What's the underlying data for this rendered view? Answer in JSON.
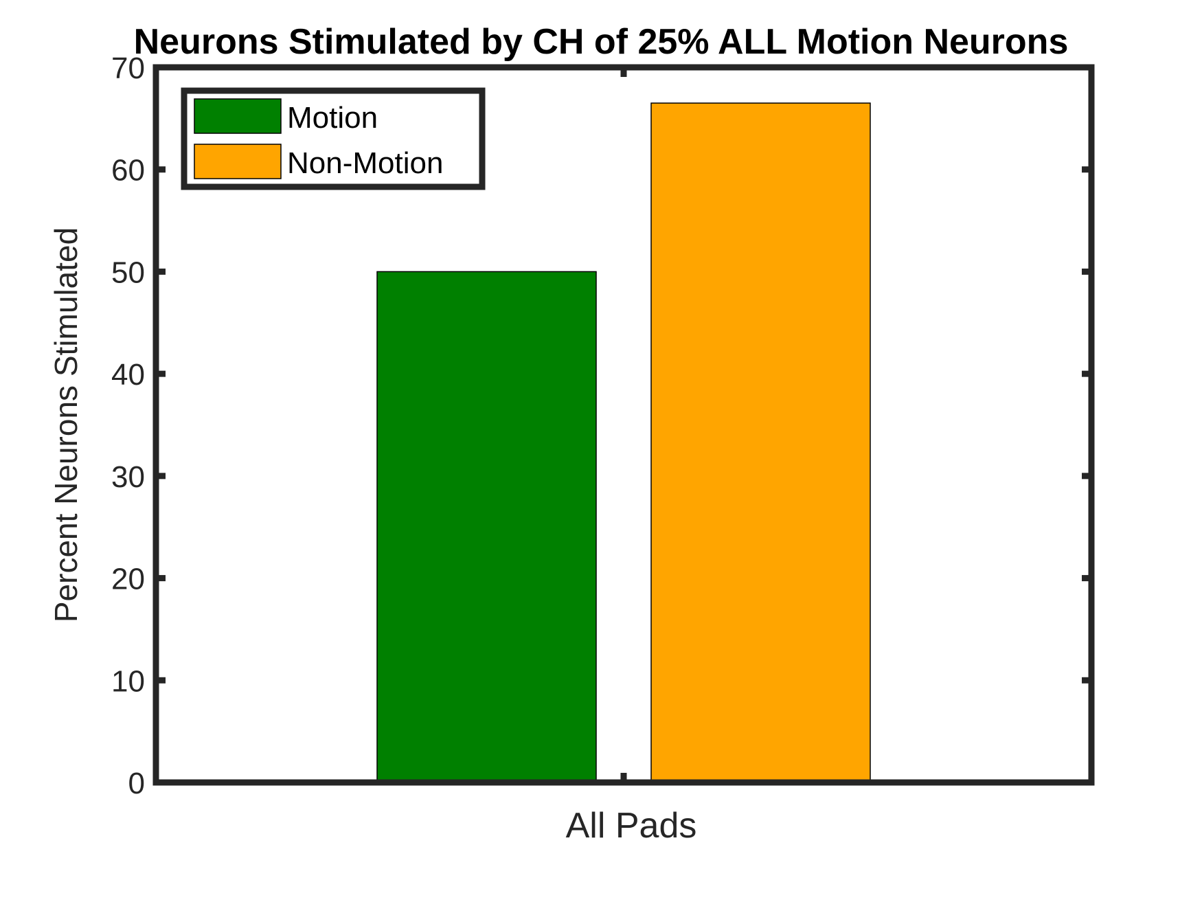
{
  "chart_data": {
    "type": "bar",
    "title": "Neurons Stimulated by CH of 25% ALL Motion Neurons",
    "xlabel": "",
    "ylabel": "Percent Neurons Stimulated",
    "categories": [
      "All Pads"
    ],
    "series": [
      {
        "name": "Motion",
        "values": [
          50
        ],
        "color": "#008000"
      },
      {
        "name": "Non-Motion",
        "values": [
          66.5
        ],
        "color": "#FFA500"
      }
    ],
    "ylim": [
      0,
      70
    ],
    "yticks": [
      0,
      10,
      20,
      30,
      40,
      50,
      60,
      70
    ],
    "grid": false,
    "legend_position": "top-left",
    "axis_color": "#262626"
  }
}
